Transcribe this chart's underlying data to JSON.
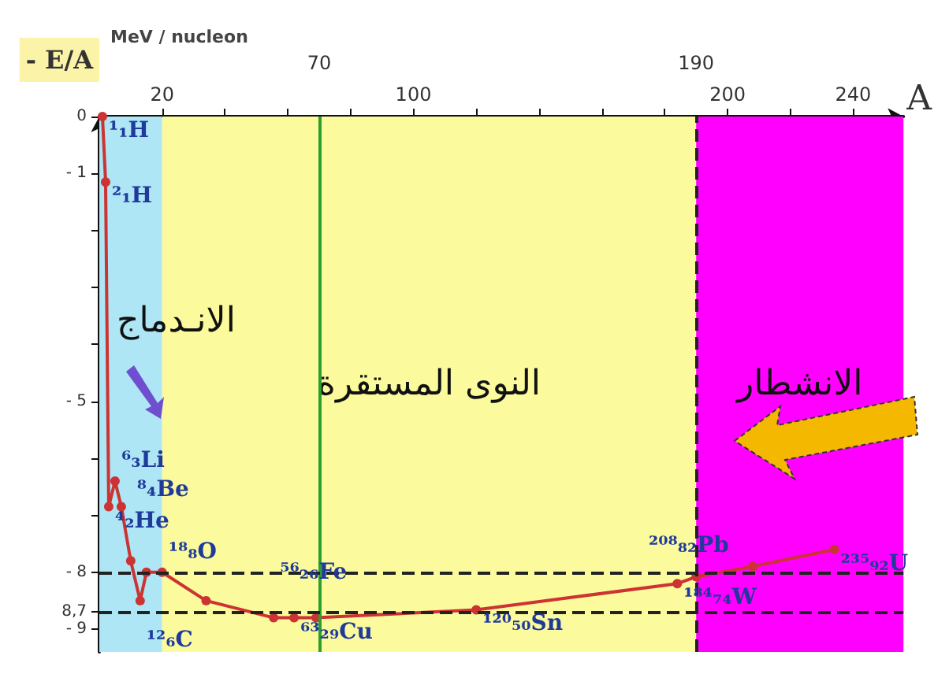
{
  "chart_data": {
    "type": "line",
    "ylabel": "- E/A",
    "xlabel": "A",
    "x": [
      1,
      2,
      3,
      5,
      7,
      10,
      13,
      15,
      20,
      34,
      55.5,
      62,
      69,
      120,
      184,
      190,
      208,
      234
    ],
    "series": [
      {
        "color": "#cc3333",
        "values": [
          0,
          -1.15,
          -6.85,
          -6.4,
          -6.85,
          -7.8,
          -8.5,
          -8.0,
          -8.0,
          -8.5,
          -8.8,
          -8.8,
          -8.8,
          -8.66,
          -8.2,
          -8.08,
          -7.9,
          -7.6
        ]
      }
    ],
    "xlim": [
      0,
      256
    ],
    "ylim": [
      -9.4,
      0
    ],
    "xticks": [
      {
        "value": 20,
        "label": "20"
      },
      {
        "value": 40,
        "label": null
      },
      {
        "value": 60,
        "label": null
      },
      {
        "value": 80,
        "label": null
      },
      100,
      {
        "value": 120,
        "label": null
      },
      {
        "value": 140,
        "label": null
      },
      {
        "value": 160,
        "label": null
      },
      {
        "value": 180,
        "label": null
      },
      200,
      {
        "value": 220,
        "label": null
      },
      240
    ],
    "yticks": [
      0,
      {
        "value": -1,
        "label": "- 1"
      },
      {
        "value": -2,
        "label": null
      },
      {
        "value": -3,
        "label": null
      },
      {
        "value": -4,
        "label": null
      },
      {
        "value": -5,
        "label": "- 5"
      },
      {
        "value": -6,
        "label": null
      },
      {
        "value": -7,
        "label": null
      },
      {
        "value": -8,
        "label": "- 8"
      },
      {
        "value": -8.7,
        "label": "8,7"
      },
      {
        "value": -9,
        "label": "- 9"
      }
    ],
    "ref_lines": [
      {
        "axis": "x",
        "value": 70,
        "label": "70",
        "color": "#2e9e2e",
        "line_style": "solid"
      },
      {
        "axis": "x",
        "value": 190,
        "label": "190",
        "color": "#222222",
        "line_style": "dashed"
      },
      {
        "axis": "y",
        "value": -8,
        "label": null,
        "color": "#222222",
        "line_style": "dashed"
      },
      {
        "axis": "y",
        "value": -8.7,
        "label": null,
        "color": "#222222",
        "line_style": "dashed"
      }
    ],
    "bands": [
      {
        "axis": "x",
        "from": 0,
        "to": 20,
        "label": "الانـدماج",
        "color": "#aee6f5"
      },
      {
        "axis": "x",
        "from": 20,
        "to": 190,
        "label": "النوى المستقرة",
        "color": "#fbfa9c"
      },
      {
        "axis": "x",
        "from": 190,
        "to": 256,
        "label": "الانشطار",
        "color": "#ff00ff"
      }
    ],
    "annotations": [
      "MeV / nucleon",
      {
        "text": "¹₁H",
        "x": 1,
        "y": 0
      },
      {
        "text": "²₁H",
        "x": 2,
        "y": -1.15
      },
      {
        "text": "⁶₃Li",
        "x": 5,
        "y": -6.4
      },
      {
        "text": "⁴₂He",
        "x": 3,
        "y": -6.85
      },
      {
        "text": "⁸₄Be",
        "x": 10,
        "y": -7.8
      },
      {
        "text": "¹²₆C",
        "x": 13,
        "y": -8.5
      },
      {
        "text": "¹⁸₈O",
        "x": 20,
        "y": -8.0
      },
      {
        "text": "⁵⁶₂₆Fe",
        "x": 55.5,
        "y": -8.8
      },
      {
        "text": "⁶³₂₉Cu",
        "x": 62,
        "y": -8.8
      },
      {
        "text": "¹²⁰₅₀Sn",
        "x": 120,
        "y": -8.66
      },
      {
        "text": "¹⁸⁴₇₄W",
        "x": 184,
        "y": -8.2
      },
      {
        "text": "²⁰⁸₈₂Pb",
        "x": 208,
        "y": -7.9
      },
      {
        "text": "²³⁵₉₂U",
        "x": 234,
        "y": -7.6
      }
    ],
    "grid": false,
    "marker": "circle",
    "line_style": "solid"
  }
}
